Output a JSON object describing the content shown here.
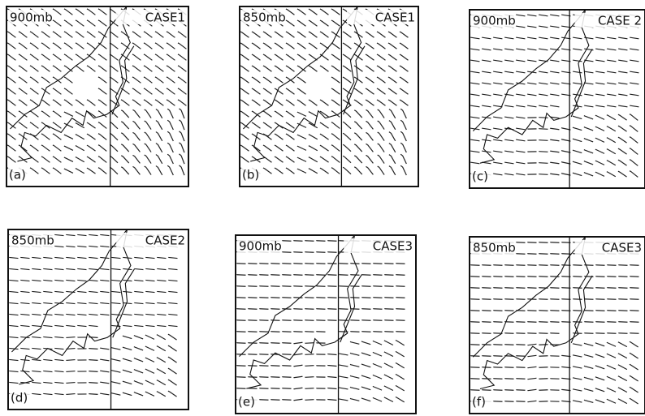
{
  "panels": [
    {
      "level": "900mb",
      "case": "CASE1",
      "label": "(a)"
    },
    {
      "level": "850mb",
      "case": "CASE1",
      "label": "(b)"
    },
    {
      "level": "900mb",
      "case": "CASE 2",
      "label": "(c)"
    },
    {
      "level": "850mb",
      "case": "CASE2",
      "label": "(d)"
    },
    {
      "level": "900mb",
      "case": "CASE3",
      "label": "(e)"
    },
    {
      "level": "850mb",
      "case": "CASE3",
      "label": "(f)"
    }
  ]
}
